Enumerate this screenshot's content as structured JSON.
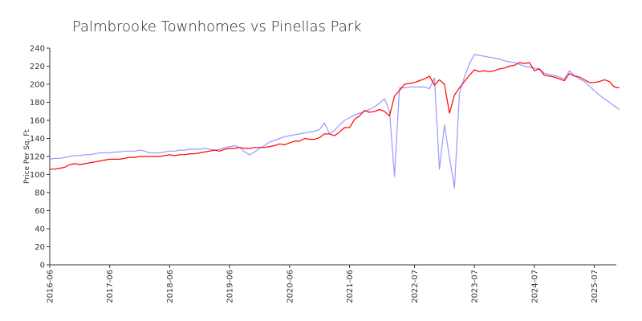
{
  "chart_data": {
    "type": "line",
    "title": "Palmbrooke Townhomes vs Pinellas Park",
    "xlabel": "",
    "ylabel": "Price Per Sq. Ft",
    "ylim": [
      0,
      240
    ],
    "y_ticks": [
      0,
      20,
      40,
      60,
      80,
      100,
      120,
      140,
      160,
      180,
      200,
      220,
      240
    ],
    "x_ticks": [
      "2016-06",
      "2017-06",
      "2018-06",
      "2019-06",
      "2020-06",
      "2021-06",
      "2022-07",
      "2023-07",
      "2024-07",
      "2025-07"
    ],
    "x_tick_months": [
      0,
      12,
      24,
      36,
      48,
      60,
      73,
      85,
      97,
      109
    ],
    "x_end_month": 113,
    "grid": false,
    "series": [
      {
        "color": "#ff0000",
        "points": [
          [
            0,
            106
          ],
          [
            1,
            106
          ],
          [
            2,
            107
          ],
          [
            3,
            108
          ],
          [
            4,
            111
          ],
          [
            5,
            112
          ],
          [
            6,
            111
          ],
          [
            7,
            112
          ],
          [
            8,
            113
          ],
          [
            9,
            114
          ],
          [
            10,
            115
          ],
          [
            11,
            116
          ],
          [
            12,
            117
          ],
          [
            13,
            117
          ],
          [
            14,
            117
          ],
          [
            15,
            118
          ],
          [
            16,
            119
          ],
          [
            17,
            119
          ],
          [
            18,
            120
          ],
          [
            19,
            120
          ],
          [
            20,
            120
          ],
          [
            21,
            120
          ],
          [
            22,
            120
          ],
          [
            23,
            121
          ],
          [
            24,
            122
          ],
          [
            25,
            121
          ],
          [
            26,
            122
          ],
          [
            27,
            122
          ],
          [
            28,
            123
          ],
          [
            29,
            123
          ],
          [
            30,
            124
          ],
          [
            31,
            125
          ],
          [
            32,
            126
          ],
          [
            33,
            127
          ],
          [
            34,
            126
          ],
          [
            35,
            128
          ],
          [
            36,
            129
          ],
          [
            37,
            129
          ],
          [
            38,
            130
          ],
          [
            39,
            129
          ],
          [
            40,
            129
          ],
          [
            41,
            130
          ],
          [
            42,
            130
          ],
          [
            43,
            130
          ],
          [
            44,
            131
          ],
          [
            45,
            132
          ],
          [
            46,
            134
          ],
          [
            47,
            133
          ],
          [
            48,
            135
          ],
          [
            49,
            137
          ],
          [
            50,
            137
          ],
          [
            51,
            140
          ],
          [
            52,
            139
          ],
          [
            53,
            139
          ],
          [
            54,
            141
          ],
          [
            55,
            145
          ],
          [
            56,
            145
          ],
          [
            57,
            143
          ],
          [
            58,
            147
          ],
          [
            59,
            152
          ],
          [
            60,
            152
          ],
          [
            61,
            161
          ],
          [
            62,
            165
          ],
          [
            63,
            171
          ],
          [
            64,
            169
          ],
          [
            65,
            170
          ],
          [
            66,
            172
          ],
          [
            67,
            170
          ],
          [
            68,
            165
          ],
          [
            69,
            187
          ],
          [
            70,
            193
          ],
          [
            71,
            200
          ],
          [
            72,
            201
          ],
          [
            73,
            202
          ],
          [
            74,
            204
          ],
          [
            75,
            206
          ],
          [
            76,
            209
          ],
          [
            77,
            199
          ],
          [
            78,
            205
          ],
          [
            79,
            200
          ],
          [
            80,
            168
          ],
          [
            81,
            188
          ],
          [
            82,
            196
          ],
          [
            83,
            203
          ],
          [
            84,
            210
          ],
          [
            85,
            216
          ],
          [
            86,
            214
          ],
          [
            87,
            215
          ],
          [
            88,
            214
          ],
          [
            89,
            215
          ],
          [
            90,
            217
          ],
          [
            91,
            218
          ],
          [
            92,
            220
          ],
          [
            93,
            221
          ],
          [
            94,
            224
          ],
          [
            95,
            223
          ],
          [
            96,
            224
          ],
          [
            97,
            215
          ],
          [
            98,
            217
          ],
          [
            99,
            210
          ],
          [
            100,
            209
          ],
          [
            101,
            208
          ],
          [
            102,
            206
          ],
          [
            103,
            204
          ],
          [
            104,
            212
          ],
          [
            105,
            209
          ],
          [
            106,
            208
          ],
          [
            107,
            205
          ],
          [
            108,
            202
          ],
          [
            109,
            202
          ],
          [
            110,
            203
          ],
          [
            111,
            205
          ],
          [
            112,
            203
          ],
          [
            113,
            197
          ],
          [
            114,
            196
          ]
        ]
      },
      {
        "color": "#9999ff",
        "points": [
          [
            0,
            117
          ],
          [
            1,
            118
          ],
          [
            2,
            118
          ],
          [
            3,
            119
          ],
          [
            4,
            120
          ],
          [
            5,
            121
          ],
          [
            6,
            121
          ],
          [
            7,
            122
          ],
          [
            8,
            122
          ],
          [
            9,
            123
          ],
          [
            10,
            124
          ],
          [
            11,
            124
          ],
          [
            12,
            124
          ],
          [
            13,
            125
          ],
          [
            14,
            125
          ],
          [
            15,
            126
          ],
          [
            16,
            126
          ],
          [
            17,
            126
          ],
          [
            18,
            127
          ],
          [
            19,
            126
          ],
          [
            20,
            124
          ],
          [
            21,
            124
          ],
          [
            22,
            124
          ],
          [
            23,
            125
          ],
          [
            24,
            126
          ],
          [
            25,
            126
          ],
          [
            26,
            127
          ],
          [
            27,
            127
          ],
          [
            28,
            128
          ],
          [
            29,
            128
          ],
          [
            30,
            128
          ],
          [
            31,
            129
          ],
          [
            32,
            128
          ],
          [
            33,
            127
          ],
          [
            34,
            128
          ],
          [
            35,
            130
          ],
          [
            36,
            131
          ],
          [
            37,
            132
          ],
          [
            38,
            130
          ],
          [
            39,
            125
          ],
          [
            40,
            122
          ],
          [
            41,
            125
          ],
          [
            42,
            129
          ],
          [
            43,
            132
          ],
          [
            44,
            136
          ],
          [
            45,
            138
          ],
          [
            46,
            140
          ],
          [
            47,
            142
          ],
          [
            48,
            143
          ],
          [
            49,
            144
          ],
          [
            50,
            145
          ],
          [
            51,
            146
          ],
          [
            52,
            147
          ],
          [
            53,
            148
          ],
          [
            54,
            150
          ],
          [
            55,
            157
          ],
          [
            56,
            145
          ],
          [
            57,
            149
          ],
          [
            58,
            155
          ],
          [
            59,
            160
          ],
          [
            60,
            163
          ],
          [
            61,
            166
          ],
          [
            62,
            168
          ],
          [
            63,
            170
          ],
          [
            64,
            172
          ],
          [
            65,
            175
          ],
          [
            66,
            179
          ],
          [
            67,
            184
          ],
          [
            68,
            170
          ],
          [
            69,
            98
          ],
          [
            70,
            196
          ],
          [
            71,
            196
          ],
          [
            72,
            197
          ],
          [
            73,
            197
          ],
          [
            74,
            197
          ],
          [
            75,
            197
          ],
          [
            76,
            195
          ],
          [
            77,
            207
          ],
          [
            78,
            106
          ],
          [
            79,
            155
          ],
          [
            80,
            119
          ],
          [
            81,
            85
          ],
          [
            82,
            190
          ],
          [
            83,
            208
          ],
          [
            84,
            223
          ],
          [
            85,
            233
          ],
          [
            86,
            232
          ],
          [
            87,
            231
          ],
          [
            88,
            230
          ],
          [
            89,
            229
          ],
          [
            90,
            228
          ],
          [
            91,
            226
          ],
          [
            92,
            225
          ],
          [
            93,
            224
          ],
          [
            94,
            222
          ],
          [
            95,
            220
          ],
          [
            96,
            219
          ],
          [
            97,
            218
          ],
          [
            98,
            217
          ],
          [
            99,
            212
          ],
          [
            100,
            211
          ],
          [
            101,
            210
          ],
          [
            102,
            208
          ],
          [
            103,
            206
          ],
          [
            104,
            215
          ],
          [
            105,
            210
          ],
          [
            106,
            206
          ],
          [
            107,
            203
          ],
          [
            108,
            198
          ],
          [
            109,
            193
          ],
          [
            110,
            188
          ],
          [
            111,
            184
          ],
          [
            112,
            180
          ],
          [
            113,
            176
          ],
          [
            114,
            172
          ]
        ]
      }
    ]
  }
}
